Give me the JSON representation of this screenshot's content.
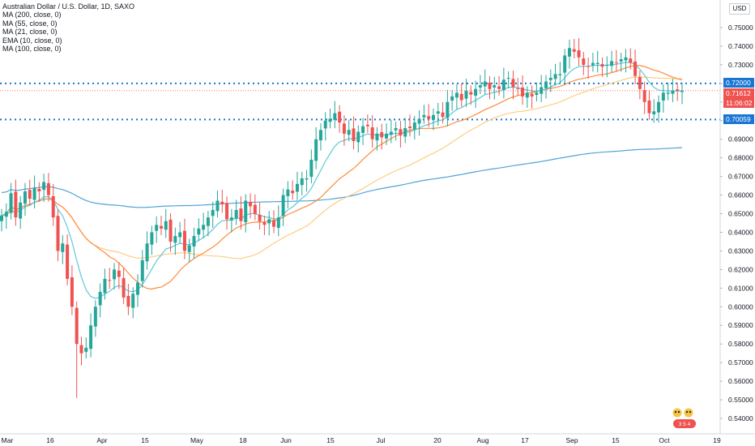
{
  "legend": {
    "title": "Australian Dollar / U.S. Dollar, 1D, SAXO",
    "indicators": [
      "MA (200, close, 0)",
      "MA (55, close, 0)",
      "MA (21, close, 0)",
      "EMA (10, close, 0)",
      "MA (100, close, 0)"
    ]
  },
  "currency_button": "USD",
  "badges": {
    "level_high": "0.72000",
    "price": "0.71612",
    "countdown": "11:06:02",
    "level_low": "0.70059"
  },
  "colors": {
    "up": "#26a69a",
    "down": "#ef5350",
    "ma200": "#4fa4d9",
    "ma55": "#ffcc80",
    "ma21": "#ff8a3d",
    "ema10": "#5fc8d8",
    "level_line": "#1976d2",
    "price_line": "#ef5350"
  },
  "chart_data": {
    "type": "candlestick",
    "title": "Australian Dollar / U.S. Dollar, 1D, SAXO",
    "y_ticks": [
      "0.75000",
      "0.74000",
      "0.73000",
      "0.72000",
      "0.71000",
      "0.70000",
      "0.69000",
      "0.68000",
      "0.67000",
      "0.66000",
      "0.65000",
      "0.64000",
      "0.63000",
      "0.62000",
      "0.61000",
      "0.60000",
      "0.59000",
      "0.58000",
      "0.57000",
      "0.56000",
      "0.55000",
      "0.54000"
    ],
    "x_ticks": [
      "Mar",
      "16",
      "Apr",
      "15",
      "May",
      "18",
      "Jun",
      "15",
      "Jul",
      "20",
      "Aug",
      "17",
      "Sep",
      "15",
      "Oct",
      "19"
    ],
    "ylim": [
      0.535,
      0.755
    ],
    "horizontal_levels": [
      0.72,
      0.70059
    ],
    "last_price": 0.71612,
    "closes": [
      0.649,
      0.651,
      0.661,
      0.648,
      0.656,
      0.662,
      0.658,
      0.664,
      0.662,
      0.667,
      0.66,
      0.648,
      0.63,
      0.634,
      0.615,
      0.6,
      0.58,
      0.575,
      0.578,
      0.59,
      0.6,
      0.608,
      0.615,
      0.614,
      0.62,
      0.616,
      0.605,
      0.6,
      0.607,
      0.613,
      0.625,
      0.634,
      0.64,
      0.644,
      0.642,
      0.646,
      0.635,
      0.638,
      0.64,
      0.63,
      0.633,
      0.638,
      0.642,
      0.644,
      0.648,
      0.652,
      0.657,
      0.655,
      0.647,
      0.648,
      0.652,
      0.646,
      0.657,
      0.654,
      0.65,
      0.646,
      0.644,
      0.647,
      0.643,
      0.648,
      0.66,
      0.663,
      0.661,
      0.666,
      0.669,
      0.669,
      0.679,
      0.69,
      0.695,
      0.7,
      0.701,
      0.704,
      0.699,
      0.693,
      0.695,
      0.689,
      0.694,
      0.697,
      0.697,
      0.69,
      0.693,
      0.691,
      0.693,
      0.694,
      0.696,
      0.692,
      0.696,
      0.696,
      0.699,
      0.701,
      0.703,
      0.701,
      0.703,
      0.705,
      0.702,
      0.71,
      0.713,
      0.715,
      0.711,
      0.716,
      0.714,
      0.717,
      0.719,
      0.721,
      0.717,
      0.719,
      0.717,
      0.722,
      0.723,
      0.718,
      0.717,
      0.713,
      0.715,
      0.713,
      0.715,
      0.718,
      0.721,
      0.723,
      0.725,
      0.725,
      0.735,
      0.739,
      0.737,
      0.734,
      0.73,
      0.729,
      0.731,
      0.731,
      0.729,
      0.73,
      0.732,
      0.731,
      0.733,
      0.734,
      0.731,
      0.724,
      0.717,
      0.71,
      0.704,
      0.705,
      0.71,
      0.715,
      0.715,
      0.716,
      0.716,
      0.716
    ],
    "series": [
      {
        "name": "MA (200, close, 0)"
      },
      {
        "name": "MA (55, close, 0)"
      },
      {
        "name": "MA (21, close, 0)"
      },
      {
        "name": "EMA (10, close, 0)"
      },
      {
        "name": "MA (100, close, 0)"
      }
    ]
  }
}
